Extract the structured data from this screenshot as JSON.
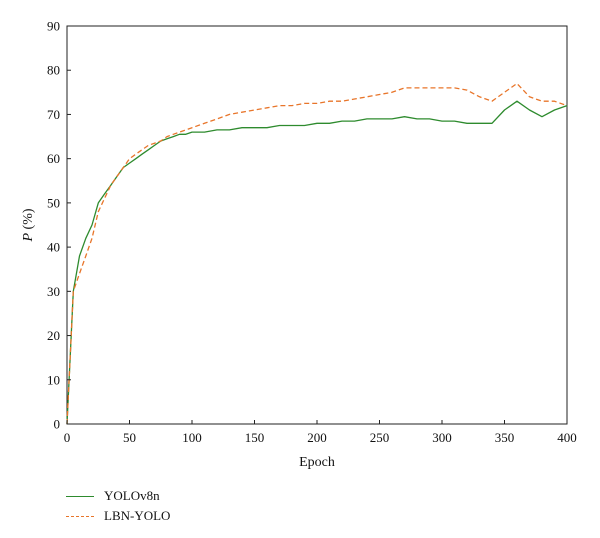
{
  "chart_data": {
    "type": "line",
    "xlabel": "Epoch",
    "ylabel": "P (%)",
    "xlim": [
      0,
      400
    ],
    "ylim": [
      0,
      90
    ],
    "xticks": [
      0,
      50,
      100,
      150,
      200,
      250,
      300,
      350,
      400
    ],
    "yticks": [
      0,
      10,
      20,
      30,
      40,
      50,
      60,
      70,
      80,
      90
    ],
    "grid": false,
    "legend_position": "bottom-left, below plot",
    "x": [
      0,
      5,
      10,
      15,
      20,
      25,
      30,
      35,
      40,
      45,
      50,
      55,
      60,
      65,
      70,
      75,
      80,
      85,
      90,
      95,
      100,
      110,
      120,
      130,
      140,
      150,
      160,
      170,
      180,
      190,
      200,
      210,
      220,
      230,
      240,
      250,
      260,
      270,
      280,
      290,
      300,
      310,
      320,
      330,
      340,
      350,
      360,
      370,
      380,
      390,
      400
    ],
    "series": [
      {
        "name": "YOLOv8n",
        "color": "#2e8b2e",
        "style": "solid",
        "values": [
          0,
          30,
          38,
          42,
          45,
          50,
          52,
          54,
          56,
          58,
          59,
          60,
          61,
          62,
          63,
          64,
          64.5,
          65,
          65.5,
          65.5,
          66,
          66,
          66.5,
          66.5,
          67,
          67,
          67,
          67.5,
          67.5,
          67.5,
          68,
          68,
          68.5,
          68.5,
          69,
          69,
          69,
          69.5,
          69,
          69,
          68.5,
          68.5,
          68,
          68,
          68,
          71,
          73,
          71,
          69.5,
          71,
          72
        ]
      },
      {
        "name": "LBN-YOLO",
        "color": "#e8752a",
        "style": "dashed",
        "values": [
          0,
          30,
          34,
          38,
          42,
          48,
          51,
          54,
          56,
          58,
          60,
          61,
          62,
          63,
          63.5,
          64,
          65,
          65.5,
          66,
          66.5,
          67,
          68,
          69,
          70,
          70.5,
          71,
          71.5,
          72,
          72,
          72.5,
          72.5,
          73,
          73,
          73.5,
          74,
          74.5,
          75,
          76,
          76,
          76,
          76,
          76,
          75.5,
          74,
          73,
          75,
          77,
          74,
          73,
          73,
          72
        ]
      }
    ]
  }
}
